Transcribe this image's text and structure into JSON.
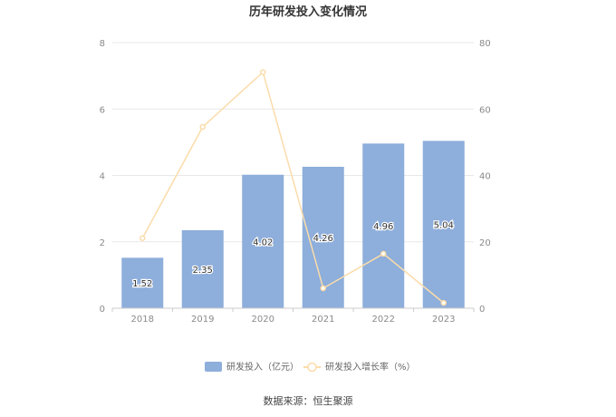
{
  "chart_data": {
    "type": "bar",
    "title": "历年研发投入变化情况",
    "categories": [
      "2018",
      "2019",
      "2020",
      "2021",
      "2022",
      "2023"
    ],
    "series": [
      {
        "name": "研发投入（亿元）",
        "type": "bar",
        "axis": "left",
        "values": [
          1.52,
          2.35,
          4.02,
          4.26,
          4.96,
          5.04
        ],
        "color": "#8eaedb"
      },
      {
        "name": "研发投入增长率（%）",
        "type": "line",
        "axis": "right",
        "values": [
          21.1,
          54.6,
          71.1,
          6.0,
          16.4,
          1.6
        ],
        "color": "#fbdcaa"
      }
    ],
    "y_left": {
      "min": 0,
      "max": 8,
      "ticks": [
        0,
        2,
        4,
        6,
        8
      ]
    },
    "y_right": {
      "min": 0,
      "max": 80,
      "ticks": [
        0,
        20,
        40,
        60,
        80
      ]
    },
    "grid": true,
    "legend_position": "bottom-center",
    "source_note": "数据来源：恒生聚源"
  },
  "colors": {
    "axis_text": "#8a8a8a",
    "grid": "#e8e8e8",
    "title": "#333333",
    "data_label": "#333333"
  }
}
